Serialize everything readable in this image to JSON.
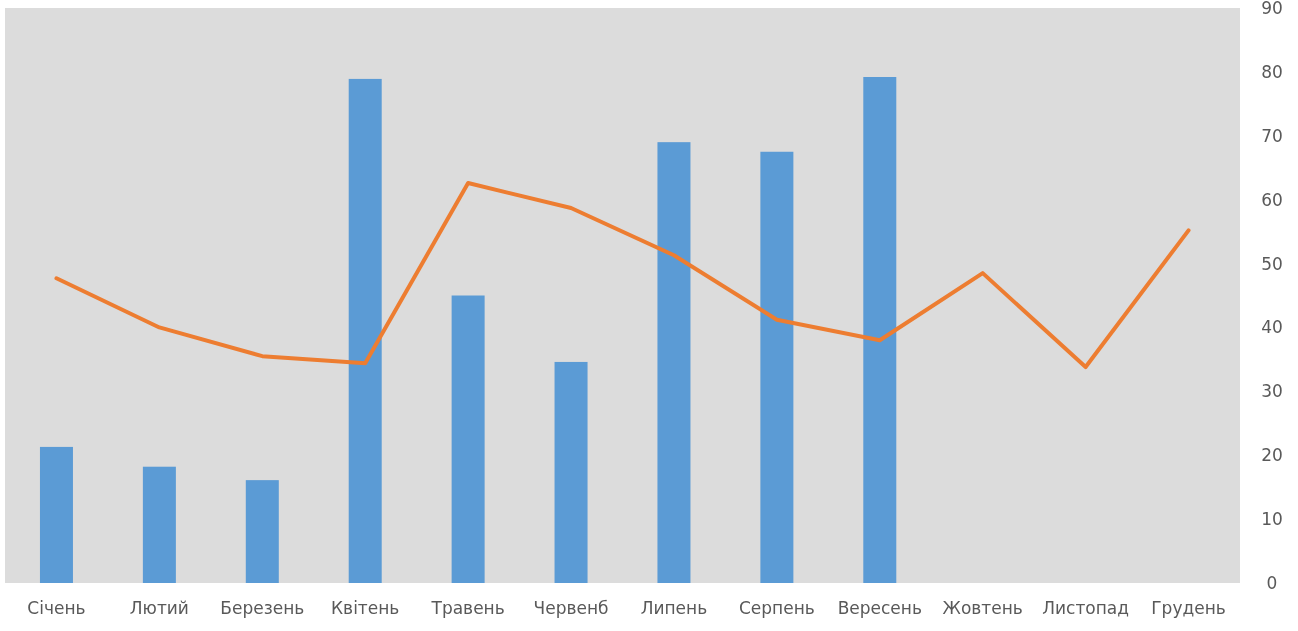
{
  "chart_data": {
    "type": "bar",
    "categories": [
      "Січень",
      "Лютий",
      "Березень",
      "Квітень",
      "Травень",
      "Червенб",
      "Липень",
      "Серпень",
      "Вересень",
      "Жовтень",
      "Листопад",
      "Грудень"
    ],
    "series": [
      {
        "color": "#5b9bd5",
        "values": [
          21.3,
          18.2,
          16.1,
          78.9,
          45,
          34.6,
          69,
          67.5,
          79.2,
          null,
          null,
          null
        ]
      },
      {
        "type": "line",
        "color": "#ed7d31",
        "values": [
          47.7,
          40,
          35.5,
          34.4,
          62.6,
          58.7,
          51.3,
          41.2,
          38,
          48.5,
          33.8,
          55.2
        ]
      }
    ],
    "ylim": [
      0,
      90
    ],
    "yticks": [
      0,
      10,
      20,
      30,
      40,
      50,
      60,
      70,
      80,
      90
    ]
  }
}
